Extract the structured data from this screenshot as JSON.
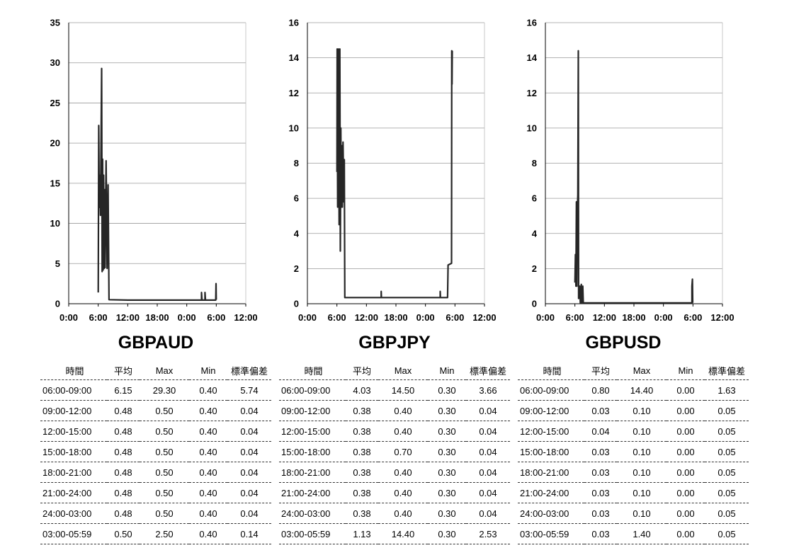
{
  "chart_data": [
    {
      "type": "line",
      "title": "GBPAUD",
      "x_ticks": [
        "0:00",
        "6:00",
        "12:00",
        "18:00",
        "0:00",
        "6:00",
        "12:00"
      ],
      "x_range_hours": [
        0,
        36
      ],
      "ylim": [
        0,
        35
      ],
      "y_ticks": [
        "0",
        "5",
        "10",
        "15",
        "20",
        "25",
        "30",
        "35"
      ],
      "grid": true,
      "series": [
        {
          "values": [
            [
              6.0,
              1.4
            ],
            [
              6.05,
              10.2
            ],
            [
              6.1,
              22.2
            ],
            [
              6.2,
              12.0
            ],
            [
              6.3,
              16.0
            ],
            [
              6.45,
              11.0
            ],
            [
              6.6,
              21.5
            ],
            [
              6.7,
              29.3
            ],
            [
              6.8,
              4.0
            ],
            [
              6.9,
              18.0
            ],
            [
              7.0,
              4.2
            ],
            [
              7.1,
              16.0
            ],
            [
              7.2,
              4.4
            ],
            [
              7.3,
              14.2
            ],
            [
              7.4,
              4.5
            ],
            [
              7.6,
              17.8
            ],
            [
              7.8,
              4.4
            ],
            [
              8.0,
              14.8
            ],
            [
              8.2,
              0.5
            ],
            [
              12,
              0.45
            ],
            [
              18,
              0.45
            ],
            [
              24,
              0.45
            ],
            [
              27.0,
              0.45
            ],
            [
              27.0,
              1.4
            ],
            [
              27.1,
              0.45
            ],
            [
              27.7,
              0.45
            ],
            [
              27.7,
              1.4
            ],
            [
              27.8,
              0.45
            ],
            [
              29.9,
              0.45
            ],
            [
              29.95,
              2.5
            ],
            [
              30.0,
              0.5
            ]
          ]
        }
      ]
    },
    {
      "type": "line",
      "title": "GBPJPY",
      "x_ticks": [
        "0:00",
        "6:00",
        "12:00",
        "18:00",
        "0:00",
        "6:00",
        "12:00"
      ],
      "x_range_hours": [
        0,
        36
      ],
      "ylim": [
        0,
        16
      ],
      "y_ticks": [
        "0",
        "2",
        "4",
        "6",
        "8",
        "10",
        "12",
        "14",
        "16"
      ],
      "grid": true,
      "series": [
        {
          "values": [
            [
              6.0,
              7.5
            ],
            [
              6.05,
              14.5
            ],
            [
              6.15,
              5.5
            ],
            [
              6.3,
              14.5
            ],
            [
              6.45,
              4.5
            ],
            [
              6.6,
              14.5
            ],
            [
              6.7,
              3.0
            ],
            [
              6.8,
              10.0
            ],
            [
              6.9,
              5.5
            ],
            [
              7.0,
              9.0
            ],
            [
              7.1,
              5.5
            ],
            [
              7.25,
              9.2
            ],
            [
              7.4,
              5.8
            ],
            [
              7.5,
              8.2
            ],
            [
              7.6,
              0.35
            ],
            [
              12,
              0.35
            ],
            [
              15.0,
              0.35
            ],
            [
              15.0,
              0.7
            ],
            [
              15.05,
              0.35
            ],
            [
              24,
              0.35
            ],
            [
              27.0,
              0.35
            ],
            [
              27.0,
              0.7
            ],
            [
              27.05,
              0.35
            ],
            [
              28.5,
              0.35
            ],
            [
              28.6,
              2.2
            ],
            [
              29.3,
              2.3
            ],
            [
              29.35,
              14.4
            ],
            [
              29.4,
              12.5
            ],
            [
              29.45,
              14.4
            ]
          ]
        }
      ]
    },
    {
      "type": "line",
      "title": "GBPUSD",
      "x_ticks": [
        "0:00",
        "6:00",
        "12:00",
        "18:00",
        "0:00",
        "6:00",
        "12:00"
      ],
      "x_range_hours": [
        0,
        36
      ],
      "ylim": [
        0,
        16
      ],
      "y_ticks": [
        "0",
        "2",
        "4",
        "6",
        "8",
        "10",
        "12",
        "14",
        "16"
      ],
      "grid": true,
      "series": [
        {
          "values": [
            [
              6.0,
              1.2
            ],
            [
              6.1,
              2.8
            ],
            [
              6.2,
              1.0
            ],
            [
              6.3,
              5.8
            ],
            [
              6.4,
              1.0
            ],
            [
              6.5,
              5.3
            ],
            [
              6.6,
              6.2
            ],
            [
              6.7,
              14.4
            ],
            [
              6.75,
              0.3
            ],
            [
              7.0,
              1.0
            ],
            [
              7.1,
              0.05
            ],
            [
              7.3,
              1.1
            ],
            [
              7.4,
              0.05
            ],
            [
              7.6,
              1.0
            ],
            [
              7.7,
              0.05
            ],
            [
              12,
              0.05
            ],
            [
              18,
              0.05
            ],
            [
              24,
              0.05
            ],
            [
              29.8,
              0.05
            ],
            [
              29.8,
              1.0
            ],
            [
              29.9,
              1.4
            ],
            [
              29.95,
              0.05
            ]
          ]
        }
      ]
    }
  ],
  "tables": [
    {
      "title": "GBPAUD",
      "headers": [
        "時間",
        "平均",
        "Max",
        "Min",
        "標準偏差"
      ],
      "rows": [
        [
          "06:00-09:00",
          "6.15",
          "29.30",
          "0.40",
          "5.74"
        ],
        [
          "09:00-12:00",
          "0.48",
          "0.50",
          "0.40",
          "0.04"
        ],
        [
          "12:00-15:00",
          "0.48",
          "0.50",
          "0.40",
          "0.04"
        ],
        [
          "15:00-18:00",
          "0.48",
          "0.50",
          "0.40",
          "0.04"
        ],
        [
          "18:00-21:00",
          "0.48",
          "0.50",
          "0.40",
          "0.04"
        ],
        [
          "21:00-24:00",
          "0.48",
          "0.50",
          "0.40",
          "0.04"
        ],
        [
          "24:00-03:00",
          "0.48",
          "0.50",
          "0.40",
          "0.04"
        ],
        [
          "03:00-05:59",
          "0.50",
          "2.50",
          "0.40",
          "0.14"
        ]
      ]
    },
    {
      "title": "GBPJPY",
      "headers": [
        "時間",
        "平均",
        "Max",
        "Min",
        "標準偏差"
      ],
      "rows": [
        [
          "06:00-09:00",
          "4.03",
          "14.50",
          "0.30",
          "3.66"
        ],
        [
          "09:00-12:00",
          "0.38",
          "0.40",
          "0.30",
          "0.04"
        ],
        [
          "12:00-15:00",
          "0.38",
          "0.40",
          "0.30",
          "0.04"
        ],
        [
          "15:00-18:00",
          "0.38",
          "0.70",
          "0.30",
          "0.04"
        ],
        [
          "18:00-21:00",
          "0.38",
          "0.40",
          "0.30",
          "0.04"
        ],
        [
          "21:00-24:00",
          "0.38",
          "0.40",
          "0.30",
          "0.04"
        ],
        [
          "24:00-03:00",
          "0.38",
          "0.40",
          "0.30",
          "0.04"
        ],
        [
          "03:00-05:59",
          "1.13",
          "14.40",
          "0.30",
          "2.53"
        ]
      ]
    },
    {
      "title": "GBPUSD",
      "headers": [
        "時間",
        "平均",
        "Max",
        "Min",
        "標準偏差"
      ],
      "rows": [
        [
          "06:00-09:00",
          "0.80",
          "14.40",
          "0.00",
          "1.63"
        ],
        [
          "09:00-12:00",
          "0.03",
          "0.10",
          "0.00",
          "0.05"
        ],
        [
          "12:00-15:00",
          "0.04",
          "0.10",
          "0.00",
          "0.05"
        ],
        [
          "15:00-18:00",
          "0.03",
          "0.10",
          "0.00",
          "0.05"
        ],
        [
          "18:00-21:00",
          "0.03",
          "0.10",
          "0.00",
          "0.05"
        ],
        [
          "21:00-24:00",
          "0.03",
          "0.10",
          "0.00",
          "0.05"
        ],
        [
          "24:00-03:00",
          "0.03",
          "0.10",
          "0.00",
          "0.05"
        ],
        [
          "03:00-05:59",
          "0.03",
          "1.40",
          "0.00",
          "0.05"
        ]
      ]
    }
  ]
}
